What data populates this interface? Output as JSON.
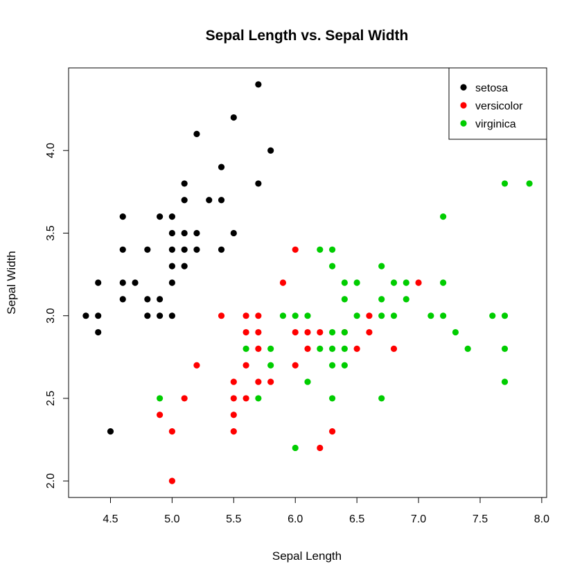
{
  "chart_data": {
    "type": "scatter",
    "title": "Sepal Length vs. Sepal Width",
    "xlabel": "Sepal Length",
    "ylabel": "Sepal Width",
    "xlim": [
      4.3,
      7.9
    ],
    "ylim": [
      2.0,
      4.4
    ],
    "xticks": [
      "4.5",
      "5.0",
      "5.5",
      "6.0",
      "6.5",
      "7.0",
      "7.5",
      "8.0"
    ],
    "yticks": [
      "2.0",
      "2.5",
      "3.0",
      "3.5",
      "4.0"
    ],
    "grid": false,
    "legend_position": "top-right",
    "series": [
      {
        "name": "setosa",
        "color": "#000000",
        "points": [
          [
            5.7,
            4.4
          ],
          [
            5.5,
            4.2
          ],
          [
            5.2,
            4.1
          ],
          [
            5.8,
            4.0
          ],
          [
            5.4,
            3.9
          ],
          [
            5.1,
            3.8
          ],
          [
            5.7,
            3.8
          ],
          [
            5.1,
            3.7
          ],
          [
            5.3,
            3.7
          ],
          [
            5.4,
            3.7
          ],
          [
            4.6,
            3.6
          ],
          [
            4.9,
            3.6
          ],
          [
            5.0,
            3.6
          ],
          [
            5.0,
            3.5
          ],
          [
            5.1,
            3.5
          ],
          [
            5.2,
            3.5
          ],
          [
            5.5,
            3.5
          ],
          [
            4.6,
            3.4
          ],
          [
            4.8,
            3.4
          ],
          [
            5.0,
            3.4
          ],
          [
            5.1,
            3.4
          ],
          [
            5.2,
            3.4
          ],
          [
            5.4,
            3.4
          ],
          [
            5.0,
            3.3
          ],
          [
            5.1,
            3.3
          ],
          [
            4.4,
            3.2
          ],
          [
            4.6,
            3.2
          ],
          [
            4.7,
            3.2
          ],
          [
            5.0,
            3.2
          ],
          [
            4.6,
            3.1
          ],
          [
            4.8,
            3.1
          ],
          [
            4.9,
            3.1
          ],
          [
            4.3,
            3.0
          ],
          [
            4.4,
            3.0
          ],
          [
            4.8,
            3.0
          ],
          [
            4.9,
            3.0
          ],
          [
            5.0,
            3.0
          ],
          [
            4.4,
            2.9
          ],
          [
            4.5,
            2.3
          ]
        ]
      },
      {
        "name": "versicolor",
        "color": "#ff0000",
        "points": [
          [
            6.0,
            3.4
          ],
          [
            5.9,
            3.2
          ],
          [
            7.0,
            3.2
          ],
          [
            5.4,
            3.0
          ],
          [
            5.6,
            3.0
          ],
          [
            5.7,
            3.0
          ],
          [
            6.6,
            3.0
          ],
          [
            5.6,
            2.9
          ],
          [
            5.7,
            2.9
          ],
          [
            6.0,
            2.9
          ],
          [
            6.1,
            2.9
          ],
          [
            6.2,
            2.9
          ],
          [
            6.4,
            2.9
          ],
          [
            6.6,
            2.9
          ],
          [
            5.7,
            2.8
          ],
          [
            6.1,
            2.8
          ],
          [
            6.5,
            2.8
          ],
          [
            6.8,
            2.8
          ],
          [
            5.2,
            2.7
          ],
          [
            5.6,
            2.7
          ],
          [
            6.0,
            2.7
          ],
          [
            5.5,
            2.6
          ],
          [
            5.7,
            2.6
          ],
          [
            5.8,
            2.6
          ],
          [
            5.1,
            2.5
          ],
          [
            5.5,
            2.5
          ],
          [
            5.6,
            2.5
          ],
          [
            4.9,
            2.4
          ],
          [
            5.5,
            2.4
          ],
          [
            5.0,
            2.3
          ],
          [
            5.5,
            2.3
          ],
          [
            6.3,
            2.3
          ],
          [
            6.2,
            2.2
          ],
          [
            5.0,
            2.0
          ]
        ]
      },
      {
        "name": "virginica",
        "color": "#00cd00",
        "points": [
          [
            7.7,
            3.8
          ],
          [
            7.9,
            3.8
          ],
          [
            7.2,
            3.6
          ],
          [
            6.2,
            3.4
          ],
          [
            6.3,
            3.4
          ],
          [
            6.3,
            3.3
          ],
          [
            6.7,
            3.3
          ],
          [
            6.4,
            3.2
          ],
          [
            6.5,
            3.2
          ],
          [
            6.8,
            3.2
          ],
          [
            6.9,
            3.2
          ],
          [
            7.2,
            3.2
          ],
          [
            6.4,
            3.1
          ],
          [
            6.7,
            3.1
          ],
          [
            6.9,
            3.1
          ],
          [
            5.9,
            3.0
          ],
          [
            6.0,
            3.0
          ],
          [
            6.1,
            3.0
          ],
          [
            6.5,
            3.0
          ],
          [
            6.7,
            3.0
          ],
          [
            6.8,
            3.0
          ],
          [
            7.1,
            3.0
          ],
          [
            7.2,
            3.0
          ],
          [
            7.6,
            3.0
          ],
          [
            7.7,
            3.0
          ],
          [
            6.3,
            2.9
          ],
          [
            6.4,
            2.9
          ],
          [
            7.3,
            2.9
          ],
          [
            5.6,
            2.8
          ],
          [
            5.8,
            2.8
          ],
          [
            6.2,
            2.8
          ],
          [
            6.3,
            2.8
          ],
          [
            6.4,
            2.8
          ],
          [
            7.4,
            2.8
          ],
          [
            7.7,
            2.8
          ],
          [
            5.8,
            2.7
          ],
          [
            6.3,
            2.7
          ],
          [
            6.4,
            2.7
          ],
          [
            6.1,
            2.6
          ],
          [
            7.7,
            2.6
          ],
          [
            4.9,
            2.5
          ],
          [
            5.7,
            2.5
          ],
          [
            6.3,
            2.5
          ],
          [
            6.7,
            2.5
          ],
          [
            6.0,
            2.2
          ]
        ]
      }
    ]
  }
}
